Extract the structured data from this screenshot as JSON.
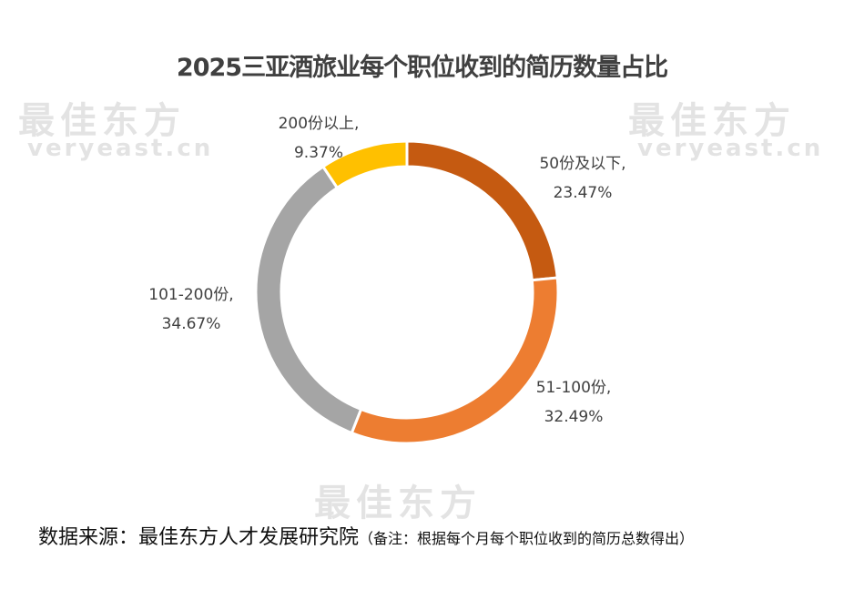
{
  "watermark": {
    "brand_cn": "最佳东方",
    "brand_en": "veryeast.cn"
  },
  "chart_data": {
    "type": "pie",
    "variant": "donut",
    "title": "2025三亚酒旅业每个职位收到的简历数量占比",
    "slices": [
      {
        "label": "50份及以下,",
        "value": 23.47,
        "value_label": "23.47%",
        "color": "#C55A11"
      },
      {
        "label": "51-100份,",
        "value": 32.49,
        "value_label": "32.49%",
        "color": "#ED7D31"
      },
      {
        "label": "101-200份,",
        "value": 34.67,
        "value_label": "34.67%",
        "color": "#A5A5A5"
      },
      {
        "label": "200份以上,",
        "value": 9.37,
        "value_label": "9.37%",
        "color": "#FFC000"
      }
    ],
    "start_angle": "top",
    "direction": "clockwise"
  },
  "footer": {
    "source": "数据来源：最佳东方人才发展研究院",
    "note": "（备注：根据每个月每个职位收到的简历总数得出）"
  }
}
